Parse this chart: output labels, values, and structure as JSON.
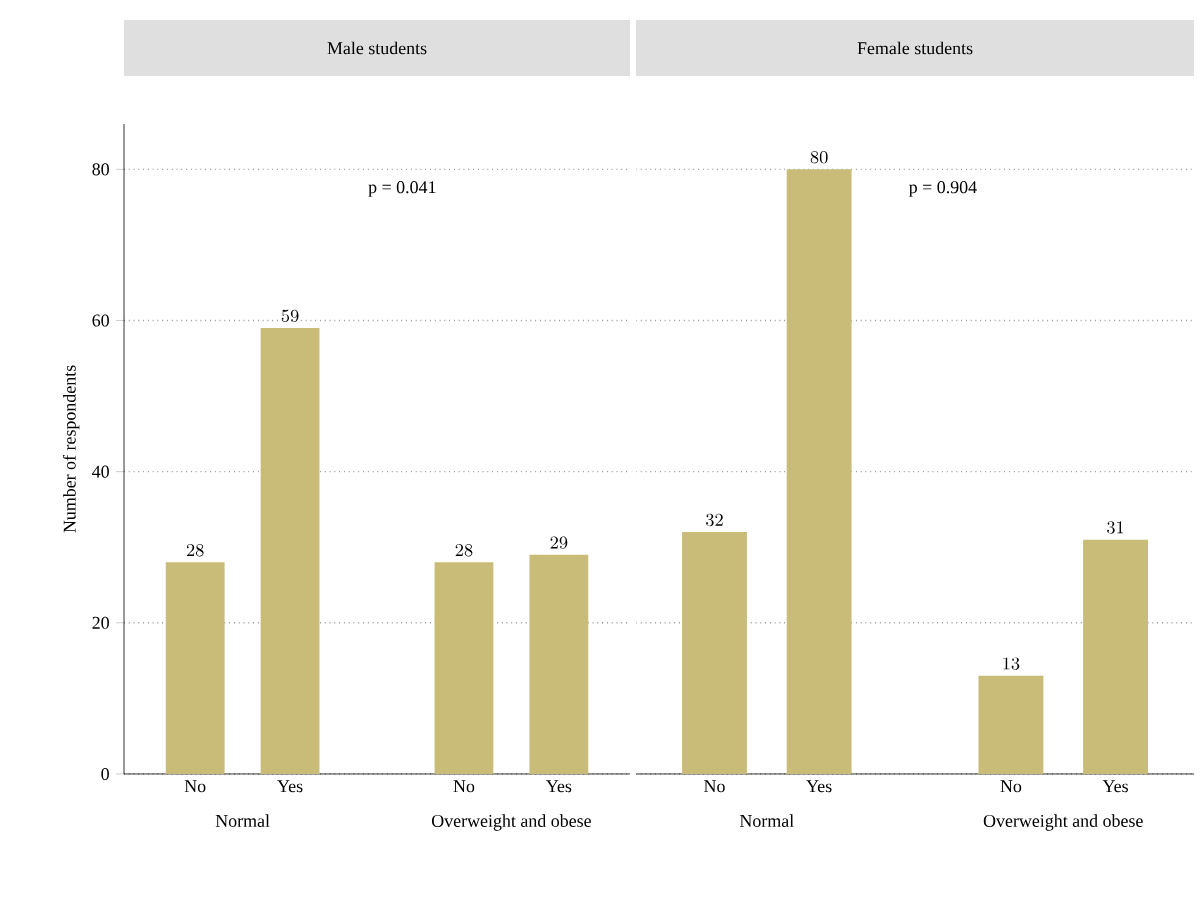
{
  "chart_data": [
    {
      "type": "bar",
      "title": "Male students",
      "categories": [
        "No",
        "Yes",
        "No",
        "Yes"
      ],
      "values": [
        28,
        59,
        28,
        29
      ],
      "color": "#c9bc78",
      "ylabel": "Number of respondents",
      "ylim": [
        0,
        86
      ],
      "yticks": [
        0,
        20,
        40,
        60,
        80
      ],
      "grid": "y",
      "data_labels": true,
      "annotations": [
        "p = 0.041",
        "Normal",
        "Overweight and obese"
      ]
    },
    {
      "type": "bar",
      "title": "Female students",
      "categories": [
        "No",
        "Yes",
        "No",
        "Yes"
      ],
      "values": [
        32,
        80,
        13,
        31
      ],
      "color": "#c9bc78",
      "ylim": [
        0,
        86
      ],
      "yticks": [
        0,
        20,
        40,
        60,
        80
      ],
      "grid": "y",
      "data_labels": true,
      "tick_labels": "x",
      "annotations": [
        "p = 0.904",
        "Normal",
        "Overweight and obese"
      ]
    }
  ]
}
